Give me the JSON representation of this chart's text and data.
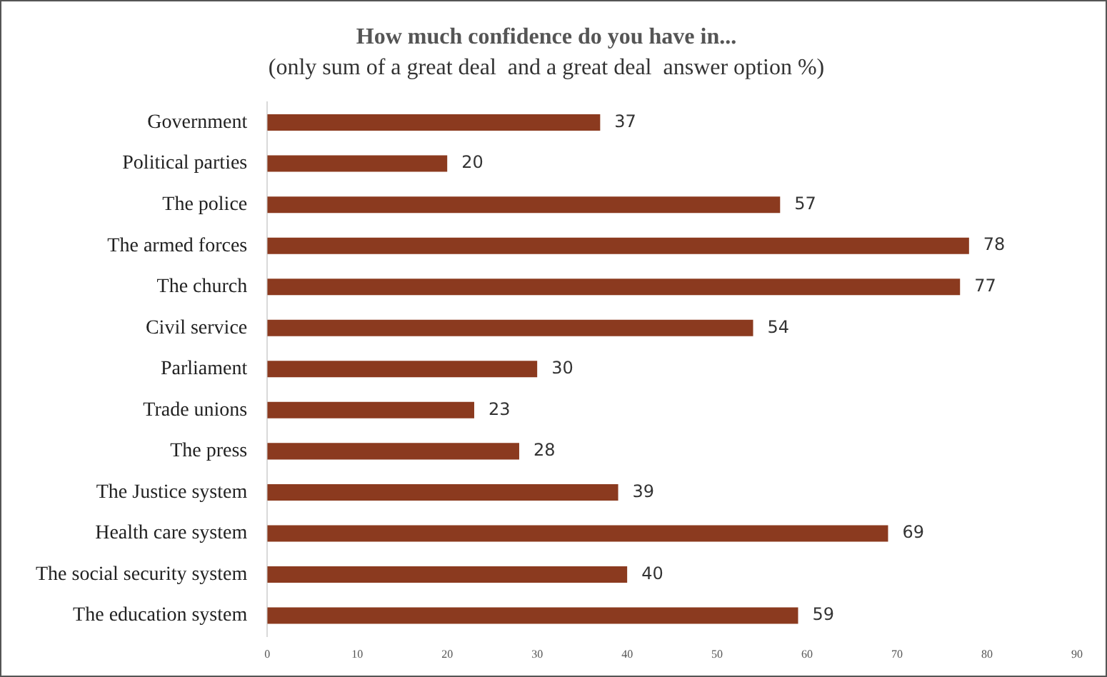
{
  "chart_data": {
    "type": "bar",
    "orientation": "horizontal",
    "title": "How much confidence do you have in...",
    "subtitle": "(only sum of a great deal  and a great deal  answer option %)",
    "categories": [
      "Government",
      "Political parties",
      "The police",
      "The armed forces",
      "The church",
      "Civil service",
      "Parliament",
      "Trade unions",
      "The press",
      "The Justice system",
      "Health care system",
      "The social security system",
      "The education system"
    ],
    "values": [
      37,
      20,
      57,
      78,
      77,
      54,
      30,
      23,
      28,
      39,
      69,
      40,
      59
    ],
    "color": "#8b3a1f",
    "xlim": [
      0,
      90
    ],
    "xticks": [
      0,
      10,
      20,
      30,
      40,
      50,
      60,
      70,
      80,
      90
    ],
    "grid": false,
    "legend": false,
    "data_labels": true
  }
}
